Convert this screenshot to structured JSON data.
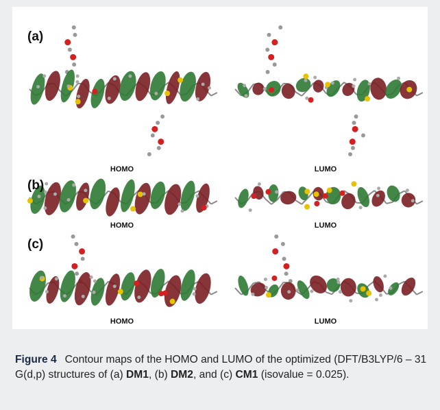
{
  "figure": {
    "panels": [
      {
        "label": "(a)",
        "homo": "HOMO",
        "lumo": "LUMO"
      },
      {
        "label": "(b)",
        "homo": "HOMO",
        "lumo": "LUMO"
      },
      {
        "label": "(c)",
        "homo": "HOMO",
        "lumo": "LUMO"
      }
    ]
  },
  "caption": {
    "label": "Figure 4",
    "segments": [
      {
        "text": "Contour maps of the HOMO and LUMO of the optimized (DFT/B3LYP/6 – 31 G(d,p) structures of (a) ",
        "bold": false
      },
      {
        "text": "DM1",
        "bold": true
      },
      {
        "text": ", (b) ",
        "bold": false
      },
      {
        "text": "DM2",
        "bold": true
      },
      {
        "text": ", and (c) ",
        "bold": false
      },
      {
        "text": "CM1",
        "bold": true
      },
      {
        "text": " (isovalue = 0.025).",
        "bold": false
      }
    ]
  }
}
